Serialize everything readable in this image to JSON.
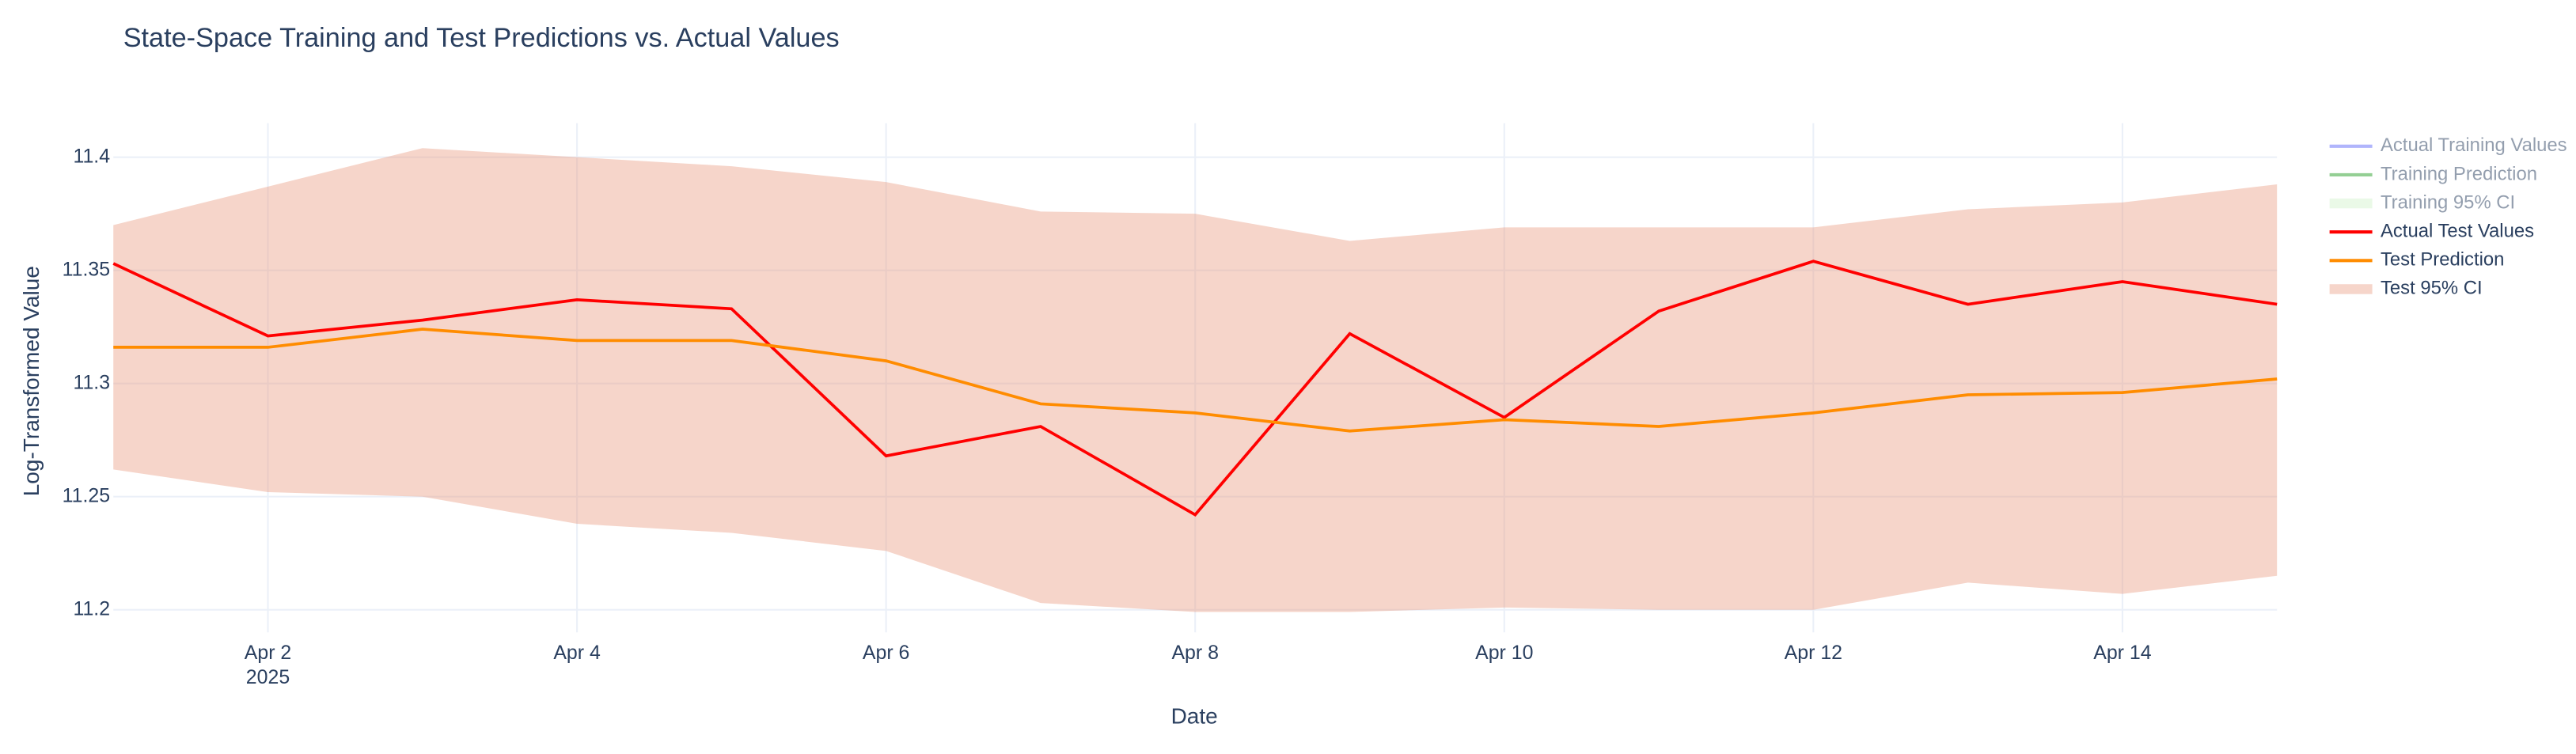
{
  "chart_data": {
    "type": "line",
    "title": "State-Space Training and Test Predictions vs. Actual Values",
    "x_label": "Date",
    "y_label": "Log-Transformed Value",
    "x": [
      "2025-04-01",
      "2025-04-02",
      "2025-04-03",
      "2025-04-04",
      "2025-04-05",
      "2025-04-06",
      "2025-04-07",
      "2025-04-08",
      "2025-04-09",
      "2025-04-10",
      "2025-04-11",
      "2025-04-12",
      "2025-04-13",
      "2025-04-14",
      "2025-04-15"
    ],
    "xlim": [
      "2025-04-01",
      "2025-04-15"
    ],
    "xticks": [
      {
        "value": "2025-04-02",
        "label": "Apr 2"
      },
      {
        "value": "2025-04-04",
        "label": "Apr 4"
      },
      {
        "value": "2025-04-06",
        "label": "Apr 6"
      },
      {
        "value": "2025-04-08",
        "label": "Apr 8"
      },
      {
        "value": "2025-04-10",
        "label": "Apr 10"
      },
      {
        "value": "2025-04-12",
        "label": "Apr 12"
      },
      {
        "value": "2025-04-14",
        "label": "Apr 14"
      }
    ],
    "x_year_label": "2025",
    "ylim": [
      11.19,
      11.415
    ],
    "yticks": [
      11.2,
      11.25,
      11.3,
      11.35,
      11.4
    ],
    "grid": true,
    "legend": "right",
    "series": [
      {
        "name": "Actual Training Values",
        "kind": "line",
        "color": "#636efa",
        "visible": "legendonly"
      },
      {
        "name": "Training Prediction",
        "kind": "line",
        "color": "#2ca02c",
        "visible": "legendonly"
      },
      {
        "name": "Training 95% CI",
        "kind": "band",
        "color": "#98df8a",
        "visible": "legendonly"
      },
      {
        "name": "Actual Test Values",
        "kind": "line",
        "color": "#ff0000",
        "values": [
          11.353,
          11.321,
          11.328,
          11.337,
          11.333,
          11.268,
          11.281,
          11.242,
          11.322,
          11.285,
          11.332,
          11.354,
          11.335,
          11.345,
          11.335
        ]
      },
      {
        "name": "Test Prediction",
        "kind": "line",
        "color": "#ff8c00",
        "values": [
          11.316,
          11.316,
          11.324,
          11.319,
          11.319,
          11.31,
          11.291,
          11.287,
          11.279,
          11.284,
          11.281,
          11.287,
          11.295,
          11.296,
          11.302
        ]
      },
      {
        "name": "Test 95% CI",
        "kind": "band",
        "color": "#e9967a",
        "upper": [
          11.37,
          11.387,
          11.404,
          11.4,
          11.396,
          11.389,
          11.376,
          11.375,
          11.363,
          11.369,
          11.369,
          11.369,
          11.377,
          11.38,
          11.388
        ],
        "lower": [
          11.262,
          11.252,
          11.25,
          11.238,
          11.234,
          11.226,
          11.203,
          11.199,
          11.199,
          11.201,
          11.2,
          11.2,
          11.212,
          11.207,
          11.215
        ]
      }
    ]
  }
}
